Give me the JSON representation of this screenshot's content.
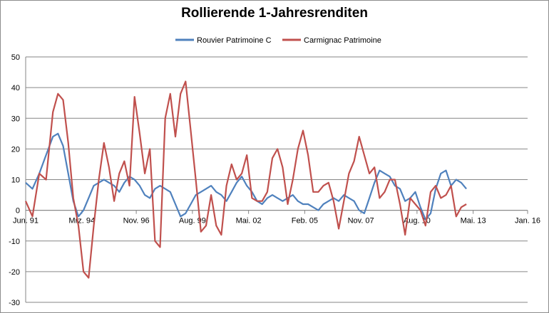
{
  "chart_data": {
    "type": "line",
    "title": "Rollierende 1-Jahresrenditen",
    "xlabel": "",
    "ylabel": "",
    "xlim": [
      "1991-06",
      "2016-01"
    ],
    "ylim": [
      -30,
      50
    ],
    "yticks": [
      -30,
      -20,
      -10,
      0,
      10,
      20,
      30,
      40,
      50
    ],
    "xticks": [
      {
        "date": "1991-06",
        "label": "Jun. 91"
      },
      {
        "date": "1994-03",
        "label": "Mrz. 94"
      },
      {
        "date": "1996-11",
        "label": "Nov. 96"
      },
      {
        "date": "1999-08",
        "label": "Aug. 99"
      },
      {
        "date": "2002-05",
        "label": "Mai. 02"
      },
      {
        "date": "2005-02",
        "label": "Feb. 05"
      },
      {
        "date": "2007-11",
        "label": "Nov. 07"
      },
      {
        "date": "2010-08",
        "label": "Aug. 10"
      },
      {
        "date": "2013-05",
        "label": "Mai. 13"
      },
      {
        "date": "2016-01",
        "label": "Jan. 16"
      }
    ],
    "grid": true,
    "legend_position": "top",
    "series": [
      {
        "name": "Rouvier Patrimoine C",
        "color": "#4f81bd",
        "x": [
          "1991-06",
          "1991-10",
          "1992-02",
          "1992-06",
          "1992-10",
          "1993-01",
          "1993-04",
          "1993-07",
          "1993-10",
          "1994-01",
          "1994-04",
          "1994-07",
          "1994-10",
          "1995-01",
          "1995-04",
          "1995-07",
          "1995-10",
          "1996-01",
          "1996-04",
          "1996-07",
          "1996-10",
          "1997-01",
          "1997-04",
          "1997-07",
          "1997-10",
          "1998-01",
          "1998-04",
          "1998-07",
          "1998-10",
          "1999-01",
          "1999-04",
          "1999-07",
          "1999-10",
          "2000-01",
          "2000-04",
          "2000-07",
          "2000-10",
          "2001-01",
          "2001-04",
          "2001-07",
          "2001-10",
          "2002-01",
          "2002-04",
          "2002-07",
          "2002-10",
          "2003-01",
          "2003-04",
          "2003-07",
          "2003-10",
          "2004-01",
          "2004-04",
          "2004-07",
          "2004-10",
          "2005-01",
          "2005-04",
          "2005-07",
          "2005-10",
          "2006-01",
          "2006-04",
          "2006-07",
          "2006-10",
          "2007-01",
          "2007-04",
          "2007-07",
          "2007-10",
          "2008-01",
          "2008-04",
          "2008-07",
          "2008-10",
          "2009-01",
          "2009-04",
          "2009-07",
          "2009-10",
          "2010-01",
          "2010-04",
          "2010-07",
          "2010-10",
          "2011-01",
          "2011-04",
          "2011-07",
          "2011-10",
          "2012-01",
          "2012-04",
          "2012-07",
          "2012-10",
          "2013-01"
        ],
        "values": [
          9,
          7,
          12,
          18,
          24,
          25,
          21,
          12,
          3,
          -2,
          0,
          4,
          8,
          9,
          10,
          9,
          8,
          6,
          9,
          11,
          10,
          8,
          5,
          4,
          7,
          8,
          7,
          6,
          2,
          -2,
          -1,
          2,
          5,
          6,
          7,
          8,
          6,
          5,
          3,
          6,
          9,
          11,
          8,
          6,
          3,
          2,
          4,
          5,
          4,
          3,
          4,
          5,
          3,
          2,
          2,
          1,
          0,
          2,
          3,
          4,
          3,
          5,
          4,
          3,
          0,
          -1,
          4,
          9,
          13,
          12,
          11,
          8,
          7,
          3,
          4,
          6,
          1,
          -3,
          -1,
          7,
          12,
          13,
          8,
          10,
          9,
          7
        ]
      },
      {
        "name": "Carmignac Patrimoine",
        "color": "#c0504d",
        "x": [
          "1991-06",
          "1991-10",
          "1992-02",
          "1992-06",
          "1992-10",
          "1993-01",
          "1993-04",
          "1993-07",
          "1993-10",
          "1994-01",
          "1994-04",
          "1994-07",
          "1994-10",
          "1995-01",
          "1995-04",
          "1995-07",
          "1995-10",
          "1996-01",
          "1996-04",
          "1996-07",
          "1996-10",
          "1997-01",
          "1997-04",
          "1997-07",
          "1997-10",
          "1998-01",
          "1998-04",
          "1998-07",
          "1998-10",
          "1999-01",
          "1999-04",
          "1999-07",
          "1999-10",
          "2000-01",
          "2000-04",
          "2000-07",
          "2000-10",
          "2001-01",
          "2001-04",
          "2001-07",
          "2001-10",
          "2002-01",
          "2002-04",
          "2002-07",
          "2002-10",
          "2003-01",
          "2003-04",
          "2003-07",
          "2003-10",
          "2004-01",
          "2004-04",
          "2004-07",
          "2004-10",
          "2005-01",
          "2005-04",
          "2005-07",
          "2005-10",
          "2006-01",
          "2006-04",
          "2006-07",
          "2006-10",
          "2007-01",
          "2007-04",
          "2007-07",
          "2007-10",
          "2008-01",
          "2008-04",
          "2008-07",
          "2008-10",
          "2009-01",
          "2009-04",
          "2009-07",
          "2009-10",
          "2010-01",
          "2010-04",
          "2010-07",
          "2010-10",
          "2011-01",
          "2011-04",
          "2011-07",
          "2011-10",
          "2012-01",
          "2012-04",
          "2012-07",
          "2012-10",
          "2013-01"
        ],
        "values": [
          3,
          -2,
          12,
          10,
          32,
          38,
          36,
          22,
          4,
          -5,
          -20,
          -22,
          -5,
          10,
          22,
          14,
          3,
          12,
          16,
          8,
          37,
          25,
          12,
          20,
          -10,
          -12,
          30,
          38,
          24,
          38,
          42,
          26,
          10,
          -7,
          -5,
          5,
          -5,
          -8,
          8,
          15,
          10,
          12,
          18,
          4,
          3,
          3,
          6,
          17,
          20,
          14,
          2,
          10,
          20,
          26,
          18,
          6,
          6,
          8,
          9,
          3,
          -6,
          3,
          12,
          16,
          24,
          18,
          12,
          14,
          4,
          6,
          10,
          10,
          2,
          -8,
          4,
          2,
          0,
          -5,
          6,
          8,
          4,
          5,
          8,
          -2,
          1,
          2
        ]
      }
    ]
  }
}
